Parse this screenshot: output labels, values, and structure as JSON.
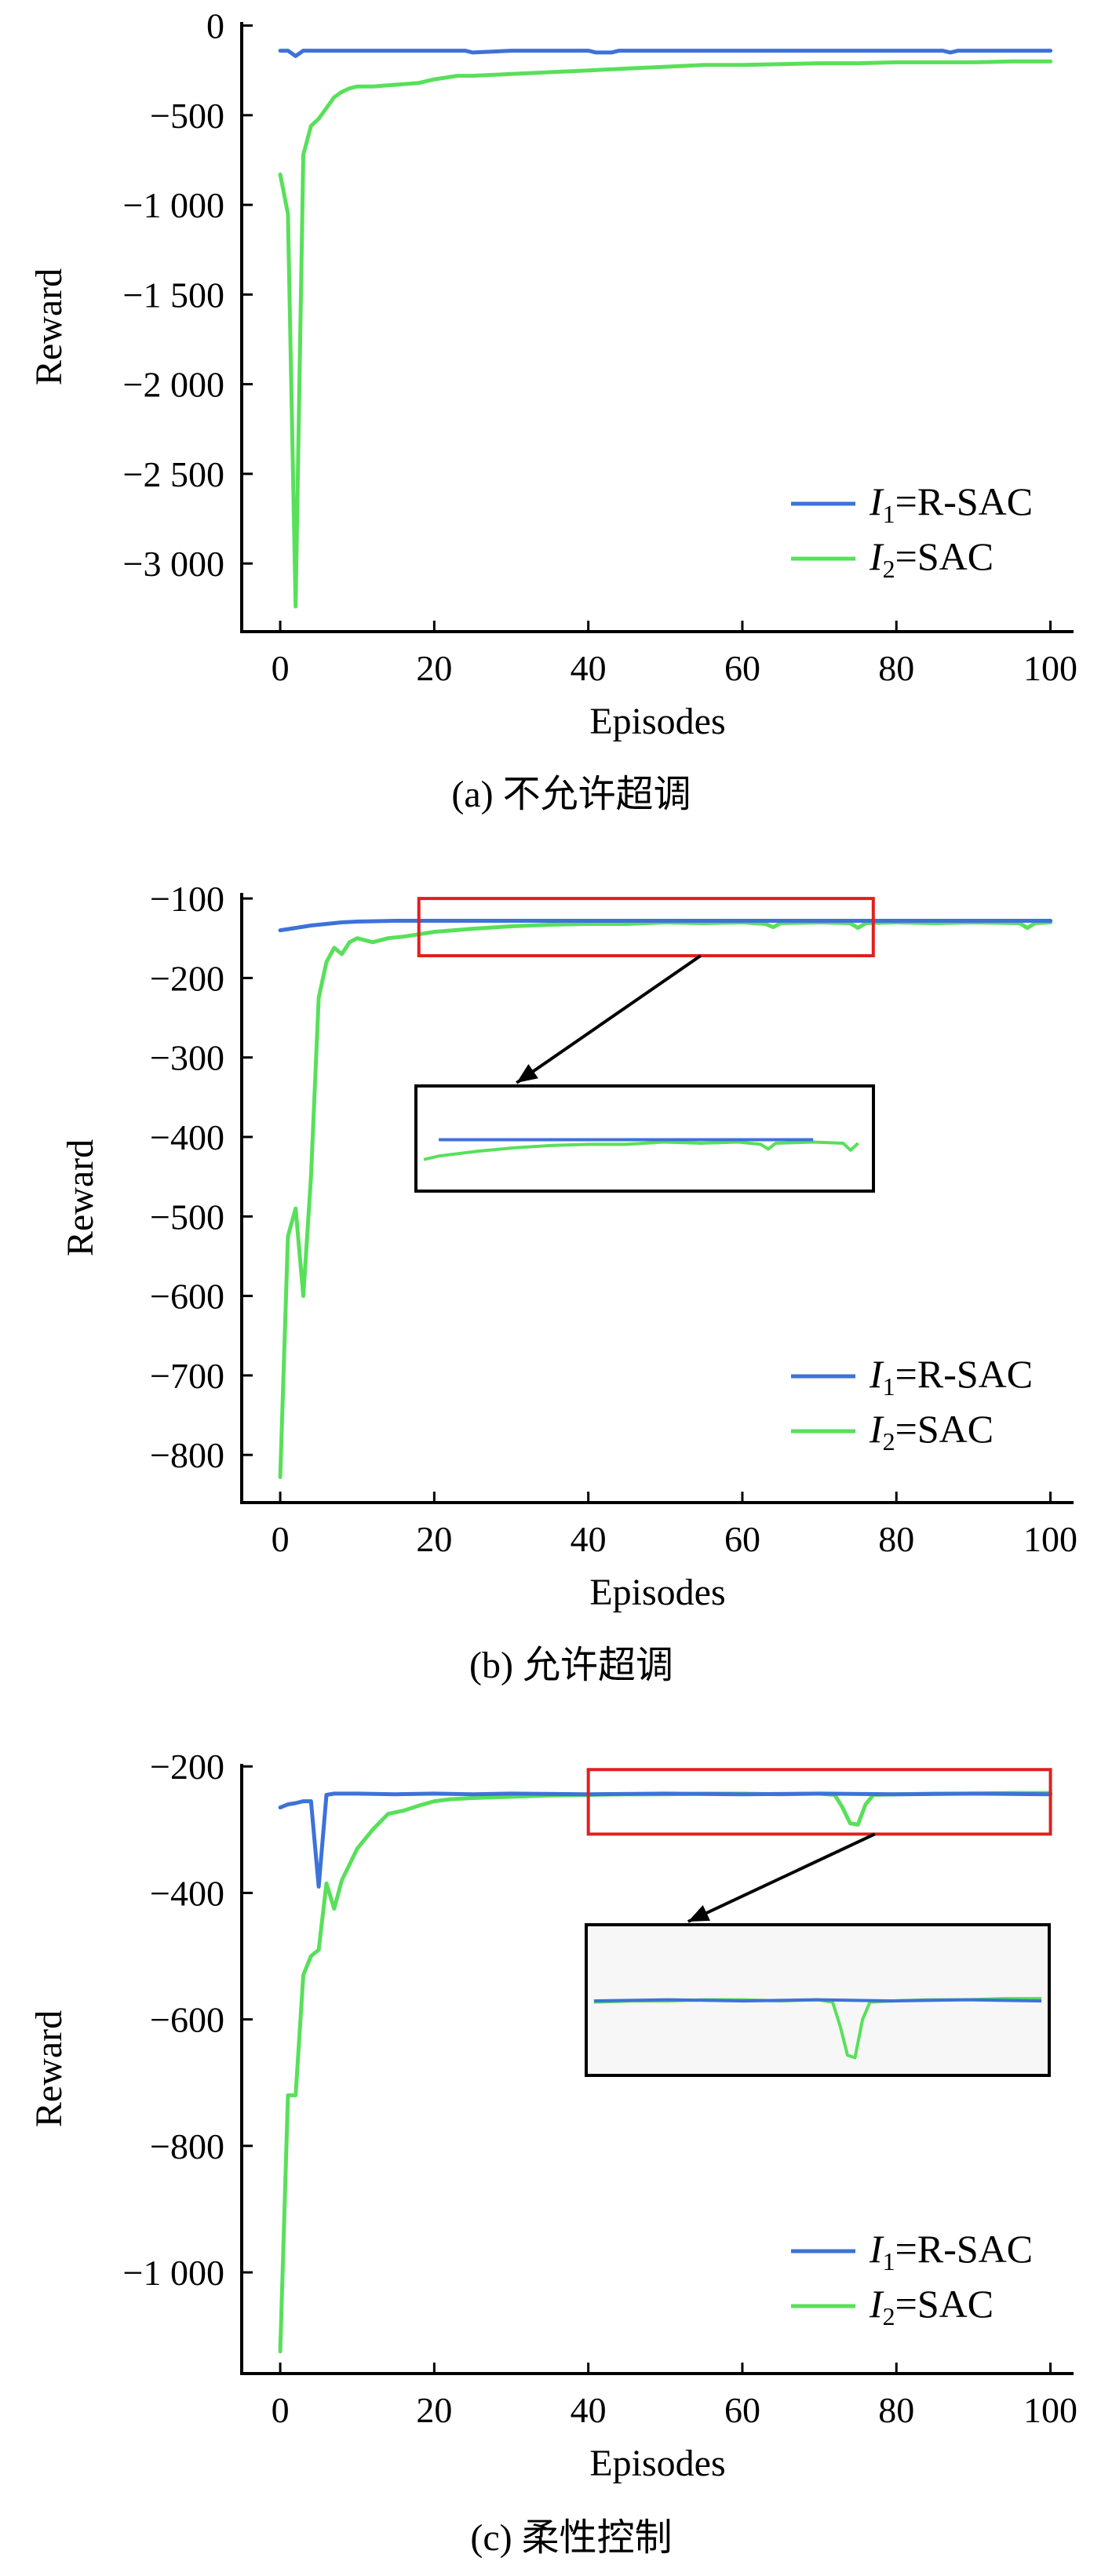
{
  "colors": {
    "r_sac": "#3d72d9",
    "sac": "#58e05a",
    "zoom_box": "#e02020",
    "axis": "#000000"
  },
  "legend": {
    "r_sac": {
      "italic": "I",
      "sub": "1",
      "rest": "=R-SAC"
    },
    "sac": {
      "italic": "I",
      "sub": "2",
      "rest": "=SAC"
    }
  },
  "chart_data": [
    {
      "type": "line",
      "caption": "(a) 不允许超调",
      "xlabel": "Episodes",
      "ylabel": "Reward",
      "xlim": [
        -5,
        103
      ],
      "ylim": [
        -3380,
        20
      ],
      "xticks": [
        0,
        20,
        40,
        60,
        80,
        100
      ],
      "xtick_labels": [
        "0",
        "20",
        "40",
        "60",
        "80",
        "100"
      ],
      "yticks": [
        0,
        -500,
        -1000,
        -1500,
        -2000,
        -2500,
        -3000
      ],
      "ytick_labels": [
        "0",
        "−500",
        "−1 000",
        "−1 500",
        "−2 000",
        "−2 500",
        "−3 000"
      ],
      "legend_position": "lower-right",
      "zoom_box": null,
      "series": [
        {
          "name": "I1=R-SAC",
          "key": "r_sac",
          "x": [
            0,
            1,
            2,
            3,
            4,
            10,
            20,
            24,
            25,
            30,
            40,
            41,
            43,
            44,
            50,
            60,
            70,
            80,
            86,
            87,
            88,
            90,
            100
          ],
          "y": [
            -140,
            -140,
            -170,
            -140,
            -140,
            -140,
            -140,
            -140,
            -150,
            -140,
            -140,
            -150,
            -150,
            -140,
            -140,
            -140,
            -140,
            -140,
            -140,
            -150,
            -140,
            -140,
            -140
          ]
        },
        {
          "name": "I2=SAC",
          "key": "sac",
          "x": [
            0,
            1,
            2,
            3,
            4,
            5,
            6,
            7,
            8,
            9,
            10,
            12,
            15,
            18,
            20,
            23,
            25,
            30,
            35,
            40,
            45,
            50,
            55,
            60,
            65,
            70,
            75,
            80,
            85,
            90,
            95,
            100
          ],
          "y": [
            -830,
            -1050,
            -3240,
            -720,
            -560,
            -520,
            -460,
            -400,
            -370,
            -350,
            -340,
            -340,
            -330,
            -320,
            -300,
            -280,
            -280,
            -270,
            -260,
            -250,
            -240,
            -230,
            -220,
            -220,
            -215,
            -210,
            -210,
            -205,
            -205,
            -205,
            -200,
            -200
          ]
        }
      ]
    },
    {
      "type": "line",
      "caption": "(b) 允许超调",
      "xlabel": "Episodes",
      "ylabel": "Reward",
      "xlim": [
        -5,
        103
      ],
      "ylim": [
        -860,
        -93
      ],
      "xticks": [
        0,
        20,
        40,
        60,
        80,
        100
      ],
      "xtick_labels": [
        "0",
        "20",
        "40",
        "60",
        "80",
        "100"
      ],
      "yticks": [
        -100,
        -200,
        -300,
        -400,
        -500,
        -600,
        -700,
        -800
      ],
      "ytick_labels": [
        "−100",
        "−200",
        "−300",
        "−400",
        "−500",
        "−600",
        "−700",
        "−800"
      ],
      "legend_position": "lower-right",
      "zoom_box": {
        "x_range": [
          18,
          77
        ],
        "y_range": [
          -172,
          -100
        ]
      },
      "series": [
        {
          "name": "I1=R-SAC",
          "key": "r_sac",
          "x": [
            0,
            2,
            4,
            6,
            8,
            10,
            15,
            20,
            30,
            40,
            50,
            60,
            70,
            80,
            90,
            100
          ],
          "y": [
            -140,
            -137,
            -134,
            -132,
            -130,
            -129,
            -128,
            -128,
            -128,
            -128,
            -128,
            -128,
            -128,
            -128,
            -128,
            -128
          ]
        },
        {
          "name": "I2=SAC",
          "key": "sac",
          "x": [
            0,
            1,
            2,
            3,
            4,
            5,
            6,
            7,
            8,
            9,
            10,
            12,
            14,
            16,
            18,
            20,
            25,
            30,
            35,
            40,
            45,
            50,
            55,
            60,
            63,
            64,
            65,
            70,
            74,
            75,
            76,
            80,
            85,
            90,
            96,
            97,
            98,
            100
          ],
          "y": [
            -828,
            -525,
            -490,
            -600,
            -450,
            -225,
            -180,
            -162,
            -170,
            -155,
            -150,
            -155,
            -150,
            -148,
            -145,
            -142,
            -138,
            -135,
            -133,
            -132,
            -132,
            -130,
            -131,
            -130,
            -132,
            -136,
            -131,
            -130,
            -131,
            -137,
            -131,
            -130,
            -131,
            -130,
            -131,
            -137,
            -131,
            -130
          ]
        }
      ]
    },
    {
      "type": "line",
      "caption": "(c) 柔性控制",
      "xlabel": "Episodes",
      "ylabel": "Reward",
      "xlim": [
        -5,
        103
      ],
      "ylim": [
        -1160,
        -196
      ],
      "xticks": [
        0,
        20,
        40,
        60,
        80,
        100
      ],
      "xtick_labels": [
        "0",
        "20",
        "40",
        "60",
        "80",
        "100"
      ],
      "yticks": [
        -200,
        -400,
        -600,
        -800,
        -1000
      ],
      "ytick_labels": [
        "−200",
        "−400",
        "−600",
        "−800",
        "−1 000"
      ],
      "legend_position": "lower-right",
      "zoom_box": {
        "x_range": [
          40,
          100
        ],
        "y_range": [
          -307,
          -205
        ]
      },
      "series": [
        {
          "name": "I1=R-SAC",
          "key": "r_sac",
          "x": [
            0,
            1,
            2,
            3,
            4,
            5,
            6,
            7,
            10,
            15,
            20,
            25,
            30,
            40,
            50,
            60,
            70,
            80,
            90,
            100
          ],
          "y": [
            -265,
            -260,
            -258,
            -255,
            -255,
            -390,
            -245,
            -243,
            -243,
            -244,
            -243,
            -244,
            -243,
            -244,
            -243,
            -244,
            -243,
            -244,
            -243,
            -244
          ]
        },
        {
          "name": "I2=SAC",
          "key": "sac",
          "x": [
            0,
            1,
            2,
            3,
            4,
            5,
            6,
            7,
            8,
            9,
            10,
            12,
            14,
            16,
            18,
            20,
            22,
            25,
            30,
            35,
            40,
            45,
            50,
            55,
            60,
            65,
            70,
            72,
            73,
            74,
            75,
            76,
            77,
            80,
            85,
            90,
            95,
            100
          ],
          "y": [
            -1125,
            -720,
            -720,
            -530,
            -500,
            -490,
            -385,
            -425,
            -380,
            -355,
            -330,
            -300,
            -275,
            -270,
            -262,
            -255,
            -252,
            -250,
            -248,
            -246,
            -245,
            -244,
            -244,
            -243,
            -243,
            -244,
            -243,
            -245,
            -265,
            -290,
            -292,
            -260,
            -245,
            -244,
            -243,
            -243,
            -242,
            -242
          ]
        }
      ]
    }
  ]
}
